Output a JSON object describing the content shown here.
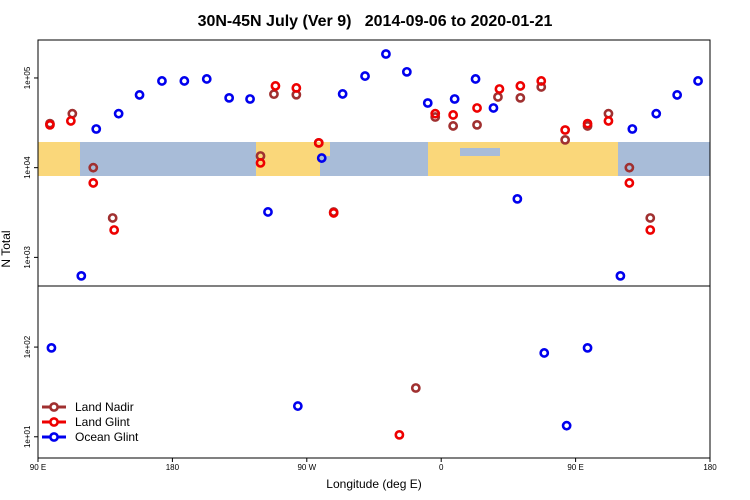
{
  "chart_data": {
    "type": "scatter",
    "title": "30N-45N July (Ver 9)   2014-09-06 to 2020-01-21",
    "x_label": "Longitude (deg E)",
    "y_label": "N Total",
    "y_log": true,
    "legend": "bottom-left",
    "xlim": [
      90,
      540
    ],
    "ylim": [
      5.8,
      265000
    ],
    "xticks": [
      {
        "value": 90,
        "label": "90 E"
      },
      180,
      {
        "value": 270,
        "label": "90 W"
      },
      {
        "value": 360,
        "label": "0"
      },
      {
        "value": 450,
        "label": "90 E"
      },
      {
        "value": 540,
        "label": "180"
      }
    ],
    "yticks": [
      {
        "value": 10,
        "label": "1e+01"
      },
      {
        "value": 100,
        "label": "1e+02"
      },
      {
        "value": 1000,
        "label": "1e+03"
      },
      {
        "value": 10000,
        "label": "1e+04"
      },
      {
        "value": 100000,
        "label": "1e+05"
      }
    ],
    "series": [
      {
        "name": "Land Nadir",
        "color": "#a03030",
        "x": [
          98,
          113,
          127,
          140,
          239,
          248,
          263,
          278,
          288,
          343,
          356,
          368,
          384,
          398,
          413,
          427,
          443,
          458,
          472,
          486,
          500
        ],
        "values": [
          31000,
          40000,
          10000,
          2750,
          13500,
          66000,
          65000,
          18900,
          3200,
          35,
          36700,
          29200,
          30000,
          61400,
          60000,
          79400,
          20400,
          29200,
          40000,
          10000,
          2750
        ]
      },
      {
        "name": "Land Glint",
        "color": "#ee0000",
        "x": [
          98,
          112,
          127,
          141,
          239,
          249,
          263,
          278,
          288,
          332,
          356,
          368,
          384,
          399,
          413,
          427,
          443,
          458,
          472,
          486,
          500
        ],
        "values": [
          30000,
          33200,
          6760,
          2020,
          11300,
          81500,
          77400,
          18900,
          3130,
          10.5,
          40000,
          38700,
          46300,
          75400,
          81500,
          92600,
          26300,
          31000,
          33200,
          6760,
          2020
        ]
      },
      {
        "name": "Ocean Glint",
        "color": "#0000ee",
        "x": [
          99,
          119,
          129,
          144,
          158,
          173,
          188,
          203,
          218,
          232,
          244,
          264,
          280,
          294,
          309,
          323,
          337,
          351,
          369,
          383,
          395,
          411,
          429,
          444,
          458,
          480,
          488,
          504,
          518,
          532
        ],
        "values": [
          98,
          622,
          27000,
          40000,
          64700,
          92600,
          92600,
          97500,
          60000,
          58300,
          3210,
          22,
          12800,
          66400,
          105000,
          185000,
          117000,
          52600,
          58300,
          97500,
          46300,
          4490,
          86,
          13.3,
          98,
          622,
          27000,
          40000,
          64700,
          92600
        ]
      }
    ]
  }
}
